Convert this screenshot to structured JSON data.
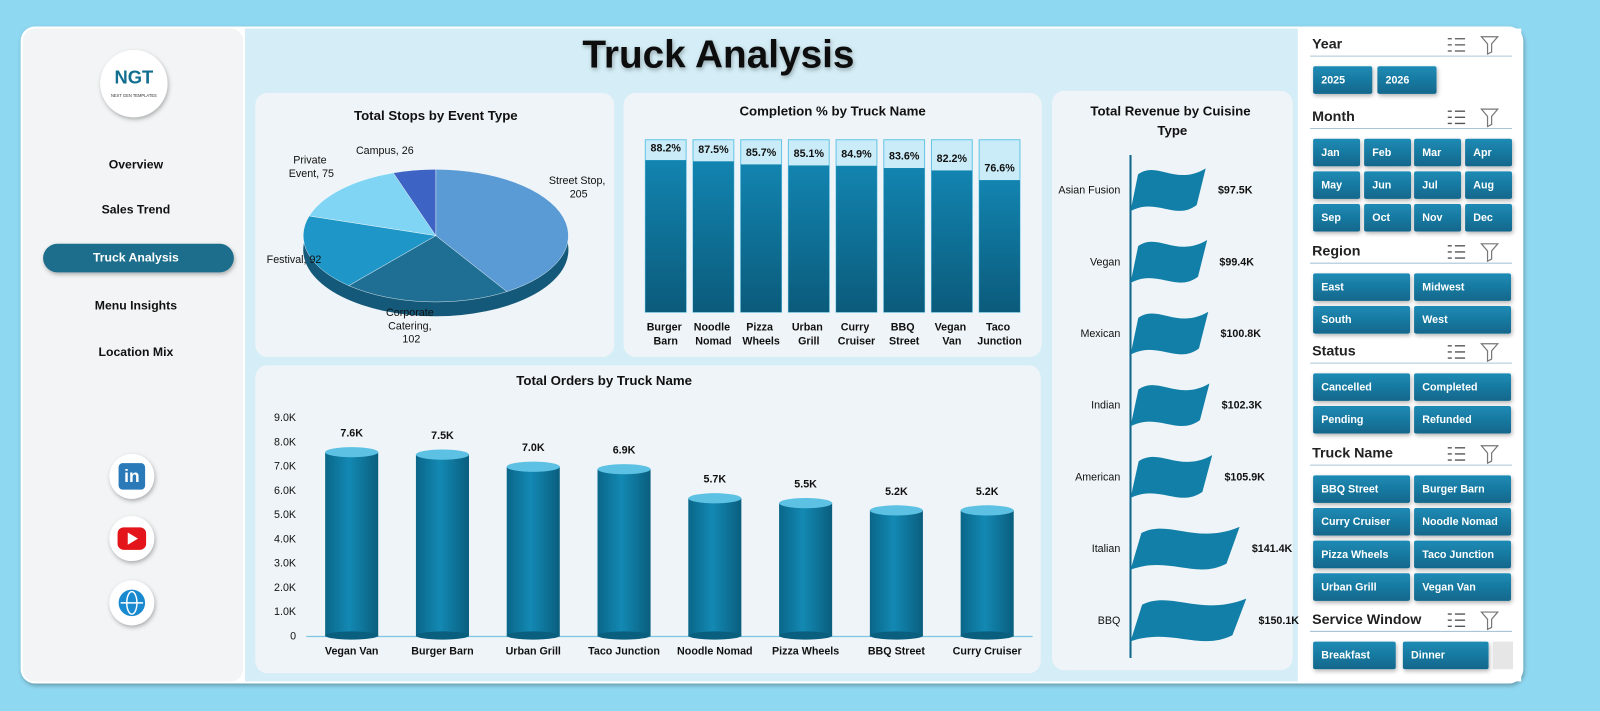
{
  "title": "Truck Analysis",
  "logo": {
    "text": "NGT",
    "subtitle": "NEXT GEN TEMPLATES"
  },
  "nav": [
    {
      "label": "Overview"
    },
    {
      "label": "Sales Trend"
    },
    {
      "label": "Truck Analysis",
      "active": true
    },
    {
      "label": "Menu Insights"
    },
    {
      "label": "Location Mix"
    }
  ],
  "social": {
    "linkedin": "in"
  },
  "slicers": [
    {
      "title": "Year",
      "items": [
        "2025",
        "2026"
      ]
    },
    {
      "title": "Month",
      "items": [
        "Jan",
        "Feb",
        "Mar",
        "Apr",
        "May",
        "Jun",
        "Jul",
        "Aug",
        "Sep",
        "Oct",
        "Nov",
        "Dec"
      ]
    },
    {
      "title": "Region",
      "items": [
        "East",
        "Midwest",
        "South",
        "West"
      ]
    },
    {
      "title": "Status",
      "items": [
        "Cancelled",
        "Completed",
        "Pending",
        "Refunded"
      ]
    },
    {
      "title": "Truck Name",
      "items": [
        "BBQ Street",
        "Burger Barn",
        "Curry Cruiser",
        "Noodle Nomad",
        "Pizza Wheels",
        "Taco Junction",
        "Urban Grill",
        "Vegan Van"
      ]
    },
    {
      "title": "Service Window",
      "items": [
        "Breakfast",
        "Dinner"
      ]
    }
  ],
  "chart_data": [
    {
      "type": "pie",
      "title": "Total Stops by Event Type",
      "categories": [
        "Street Stop",
        "Corporate Catering",
        "Festival",
        "Private Event",
        "Campus"
      ],
      "values": [
        205,
        102,
        92,
        75,
        26
      ],
      "value_labels": [
        "Street Stop, 205",
        "Corporate Catering, 102",
        "Festival, 92",
        "Private Event, 75",
        "Campus, 26"
      ],
      "colors": [
        "#5b9bd5",
        "#1f6f95",
        "#1e96c8",
        "#7fd5f3",
        "#3d63c4"
      ]
    },
    {
      "type": "bar",
      "title": "Completion % by Truck Name",
      "categories": [
        "Burger Barn",
        "Noodle Nomad",
        "Pizza Wheels",
        "Urban Grill",
        "Curry Cruiser",
        "BBQ Street",
        "Vegan Van",
        "Taco Junction"
      ],
      "values": [
        88.2,
        87.5,
        85.7,
        85.1,
        84.9,
        83.6,
        82.2,
        76.6
      ],
      "value_labels": [
        "88.2%",
        "87.5%",
        "85.7%",
        "85.1%",
        "84.9%",
        "83.6%",
        "82.2%",
        "76.6%"
      ],
      "ylim": [
        0,
        100
      ],
      "color": "#0f6f95",
      "track_color": "#c9ecf8"
    },
    {
      "type": "bar",
      "orientation": "horizontal",
      "shape": "flag",
      "title": "Total Revenue by Cuisine Type",
      "categories": [
        "Asian Fusion",
        "Vegan",
        "Mexican",
        "Indian",
        "American",
        "Italian",
        "BBQ"
      ],
      "values": [
        97500,
        99400,
        100800,
        102300,
        105900,
        141400,
        150100
      ],
      "value_labels": [
        "$97.5K",
        "$99.4K",
        "$100.8K",
        "$102.3K",
        "$105.9K",
        "$141.4K",
        "$150.1K"
      ],
      "xlim": [
        0,
        160000
      ],
      "color": "#127fa8"
    },
    {
      "type": "bar",
      "shape": "cylinder",
      "title": "Total Orders by Truck Name",
      "categories": [
        "Vegan Van",
        "Burger Barn",
        "Urban Grill",
        "Taco Junction",
        "Noodle Nomad",
        "Pizza Wheels",
        "BBQ Street",
        "Curry Cruiser"
      ],
      "values": [
        7600,
        7500,
        7000,
        6900,
        5700,
        5500,
        5200,
        5200
      ],
      "value_labels": [
        "7.6K",
        "7.5K",
        "7.0K",
        "6.9K",
        "5.7K",
        "5.5K",
        "5.2K",
        "5.2K"
      ],
      "ylim": [
        0,
        9000
      ],
      "yticks": [
        0,
        {
          "value": 1000,
          "label": "1.0K"
        },
        {
          "value": 2000,
          "label": "2.0K"
        },
        {
          "value": 3000,
          "label": "3.0K"
        },
        {
          "value": 4000,
          "label": "4.0K"
        },
        {
          "value": 5000,
          "label": "5.0K"
        },
        {
          "value": 6000,
          "label": "6.0K"
        },
        {
          "value": 7000,
          "label": "7.0K"
        },
        {
          "value": 8000,
          "label": "8.0K"
        },
        {
          "value": 9000,
          "label": "9.0K"
        }
      ],
      "color": "#0d7fa6"
    }
  ]
}
